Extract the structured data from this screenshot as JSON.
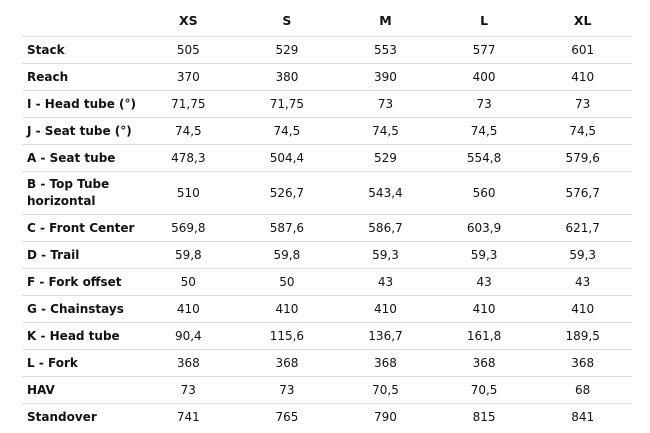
{
  "table": {
    "columns": [
      "XS",
      "S",
      "M",
      "L",
      "XL"
    ],
    "rows": [
      {
        "label": "Stack",
        "values": [
          "505",
          "529",
          "553",
          "577",
          "601"
        ]
      },
      {
        "label": "Reach",
        "values": [
          "370",
          "380",
          "390",
          "400",
          "410"
        ]
      },
      {
        "label": "I - Head tube (°)",
        "values": [
          "71,75",
          "71,75",
          "73",
          "73",
          "73"
        ]
      },
      {
        "label": "J - Seat tube (°)",
        "values": [
          "74,5",
          "74,5",
          "74,5",
          "74,5",
          "74,5"
        ]
      },
      {
        "label": "A - Seat tube",
        "values": [
          "478,3",
          "504,4",
          "529",
          "554,8",
          "579,6"
        ]
      },
      {
        "label": "B - Top Tube horizontal",
        "values": [
          "510",
          "526,7",
          "543,4",
          "560",
          "576,7"
        ]
      },
      {
        "label": "C - Front Center",
        "values": [
          "569,8",
          "587,6",
          "586,7",
          "603,9",
          "621,7"
        ]
      },
      {
        "label": "D - Trail",
        "values": [
          "59,8",
          "59,8",
          "59,3",
          "59,3",
          "59,3"
        ]
      },
      {
        "label": "F - Fork offset",
        "values": [
          "50",
          "50",
          "43",
          "43",
          "43"
        ]
      },
      {
        "label": "G - Chainstays",
        "values": [
          "410",
          "410",
          "410",
          "410",
          "410"
        ]
      },
      {
        "label": "K - Head tube",
        "values": [
          "90,4",
          "115,6",
          "136,7",
          "161,8",
          "189,5"
        ]
      },
      {
        "label": "L - Fork",
        "values": [
          "368",
          "368",
          "368",
          "368",
          "368"
        ]
      },
      {
        "label": "HAV",
        "values": [
          "73",
          "73",
          "70,5",
          "70,5",
          "68"
        ]
      },
      {
        "label": "Standover",
        "values": [
          "741",
          "765",
          "790",
          "815",
          "841"
        ]
      }
    ]
  }
}
